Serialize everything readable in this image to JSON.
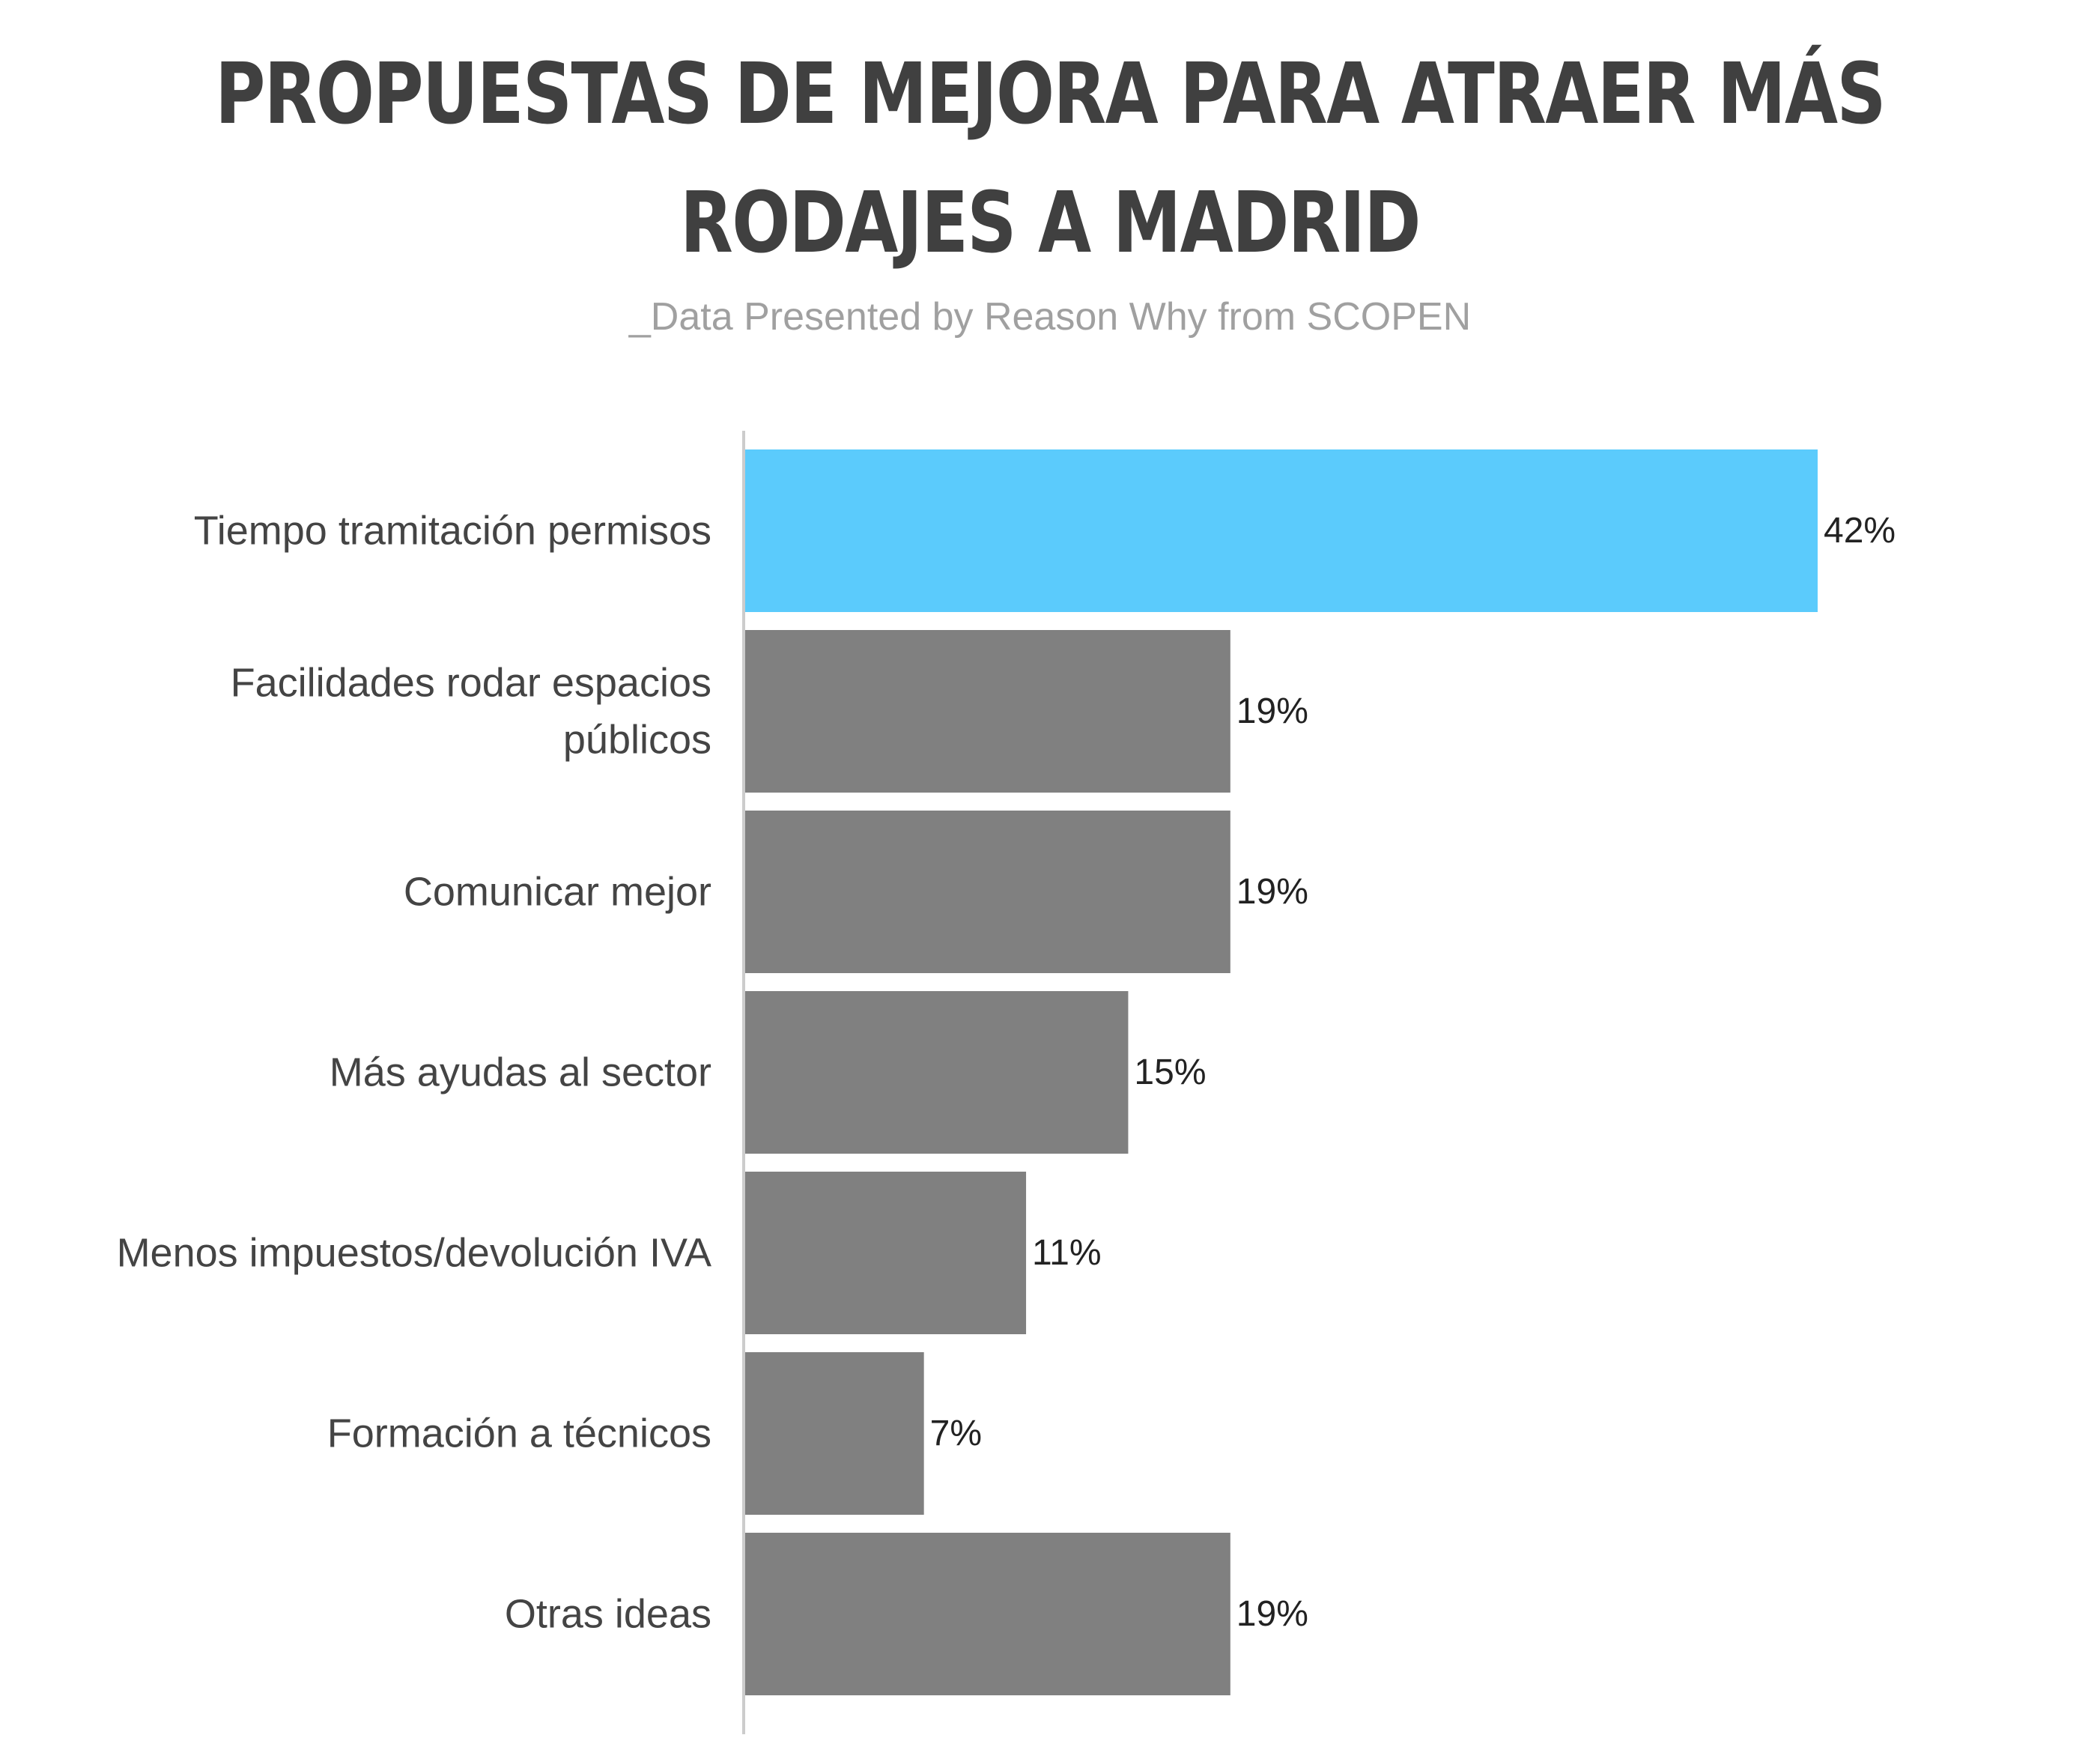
{
  "chart_data": {
    "type": "bar",
    "orientation": "horizontal",
    "title": "PROPUESTAS DE MEJORA PARA ATRAER MÁS RODAJES A MADRID",
    "title_lines": [
      "PROPUESTAS DE MEJORA PARA ATRAER MÁS",
      "RODAJES A MADRID"
    ],
    "subtitle": "_Data Presented by Reason Why from SCOPEN",
    "categories": [
      "Tiempo tramitación permisos",
      "Facilidades rodar espacios públicos",
      "Comunicar mejor",
      "Más ayudas al sector",
      "Menos impuestos/devolución IVA",
      "Formación a técnicos",
      "Otras ideas"
    ],
    "category_lines": [
      [
        "Tiempo tramitación permisos"
      ],
      [
        "Facilidades rodar espacios",
        "públicos"
      ],
      [
        "Comunicar mejor"
      ],
      [
        "Más ayudas al sector"
      ],
      [
        "Menos impuestos/devolución IVA"
      ],
      [
        "Formación a técnicos"
      ],
      [
        "Otras ideas"
      ]
    ],
    "values": [
      42,
      19,
      19,
      15,
      11,
      7,
      19
    ],
    "value_labels": [
      "42%",
      "19%",
      "19%",
      "15%",
      "11%",
      "7%",
      "19%"
    ],
    "highlight_index": 0,
    "colors": {
      "highlight": "#5bcbfc",
      "bar": "#808080",
      "axis": "#cccccc"
    },
    "grid": false,
    "legend": "none",
    "xlim": [
      0,
      42
    ]
  }
}
